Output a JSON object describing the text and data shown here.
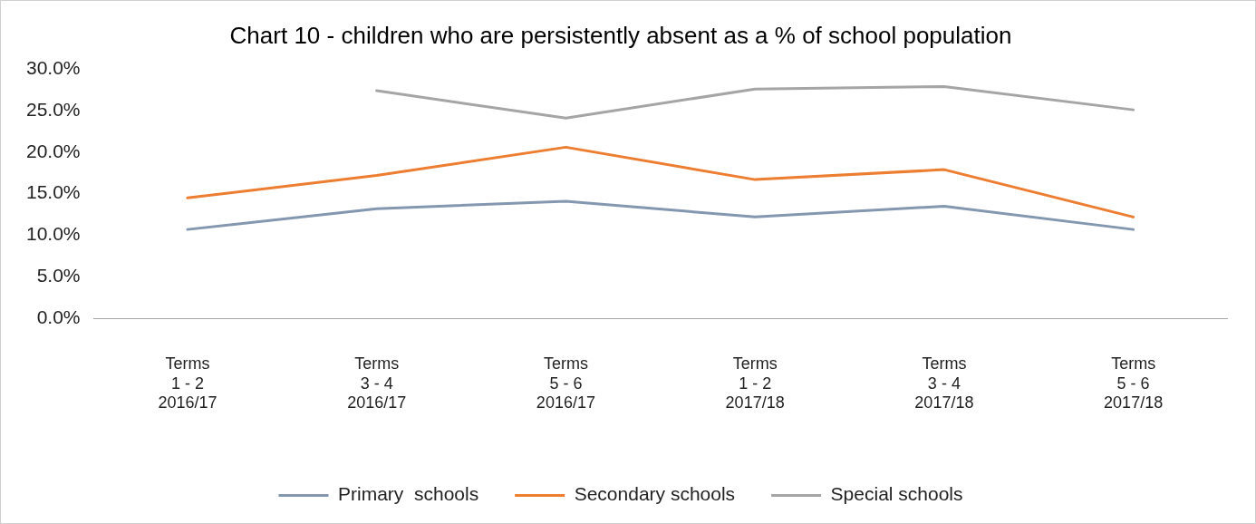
{
  "chart_data": {
    "type": "line",
    "title": "Chart 10 - children who are persistently absent as a % of school population",
    "categories": [
      "Terms\n1 - 2\n2016/17",
      "Terms\n3 - 4\n2016/17",
      "Terms\n5 - 6\n2016/17",
      "Terms\n1 - 2\n2017/18",
      "Terms\n3 - 4\n2017/18",
      "Terms\n5 - 6\n2017/18"
    ],
    "series": [
      {
        "name": "Primary  schools",
        "color": "#8497b0",
        "values": [
          10.7,
          13.2,
          14.1,
          12.2,
          13.5,
          10.7
        ]
      },
      {
        "name": "Secondary schools",
        "color": "#ed7d31",
        "values": [
          14.5,
          17.2,
          20.6,
          16.7,
          17.9,
          12.2
        ]
      },
      {
        "name": "Special schools",
        "color": "#a5a5a5",
        "values": [
          null,
          27.4,
          24.1,
          27.6,
          27.9,
          25.1
        ]
      }
    ],
    "ylim": [
      0,
      30
    ],
    "yticks": [
      {
        "value": 0,
        "label": "0.0%"
      },
      {
        "value": 5,
        "label": "5.0%"
      },
      {
        "value": 10,
        "label": "10.0%"
      },
      {
        "value": 15,
        "label": "15.0%"
      },
      {
        "value": 20,
        "label": "20.0%"
      },
      {
        "value": 25,
        "label": "25.0%"
      },
      {
        "value": 30,
        "label": "30.0%"
      }
    ],
    "grid": false,
    "legend": "bottom",
    "marker": "none",
    "line_style": "solid"
  }
}
